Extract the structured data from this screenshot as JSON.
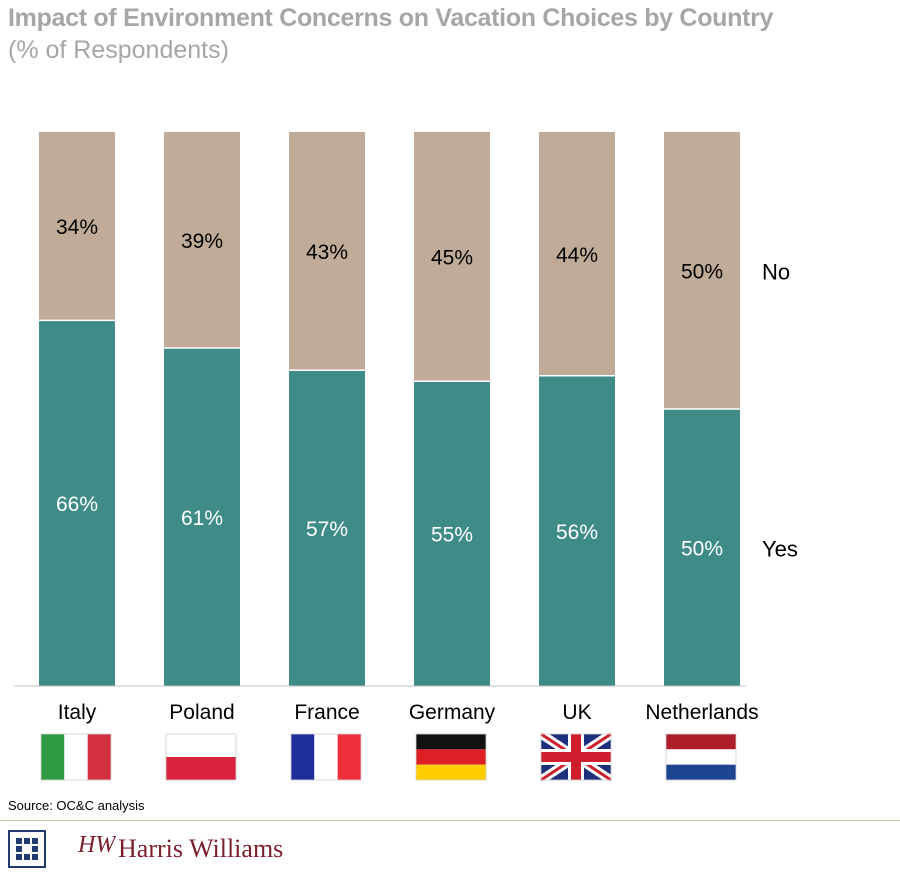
{
  "chart_data": {
    "type": "bar",
    "stacked": true,
    "title": "Impact of Environment Concerns on Vacation Choices by Country",
    "subtitle": "(% of Respondents)",
    "categories": [
      "Italy",
      "Poland",
      "France",
      "Germany",
      "UK",
      "Netherlands"
    ],
    "series": [
      {
        "name": "Yes",
        "values": [
          66,
          61,
          57,
          55,
          56,
          50
        ],
        "labels": [
          "66%",
          "61%",
          "57%",
          "55%",
          "56%",
          "50%"
        ],
        "color": "#3e8b88"
      },
      {
        "name": "No",
        "values": [
          34,
          39,
          43,
          45,
          44,
          50
        ],
        "labels": [
          "34%",
          "39%",
          "43%",
          "45%",
          "44%",
          "50%"
        ],
        "color": "#bfab97"
      }
    ],
    "ylim": [
      0,
      100
    ],
    "flags": [
      "italy-flag",
      "poland-flag",
      "france-flag",
      "germany-flag",
      "uk-flag",
      "netherlands-flag"
    ]
  },
  "footer": {
    "source": "Source:  OC&C analysis",
    "brand_mark": "HW",
    "brand_name": "Harris Williams",
    "brand_color": "#7a1f2b",
    "logo_color": "#1f3a6d"
  }
}
